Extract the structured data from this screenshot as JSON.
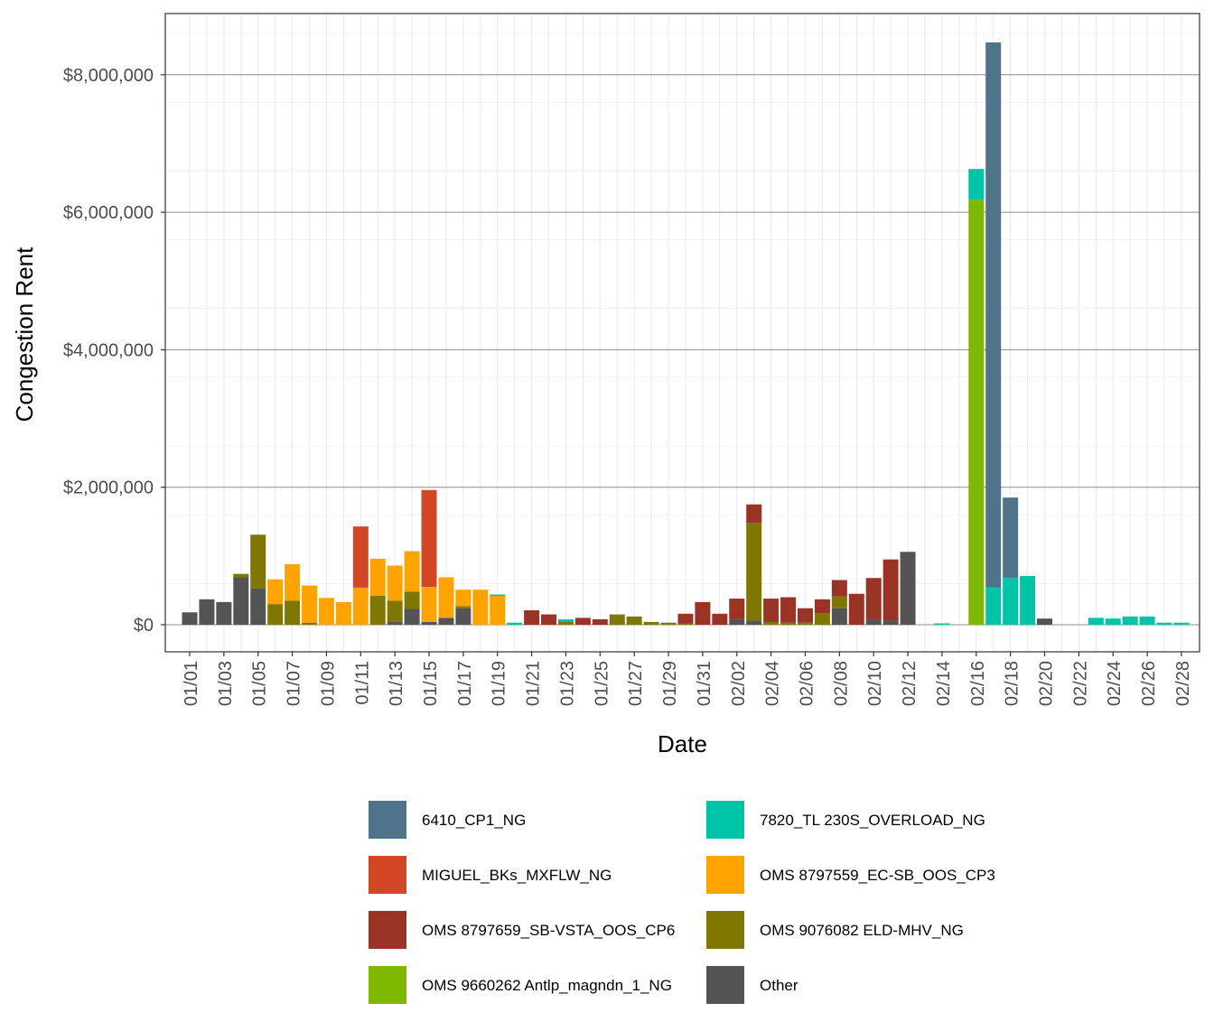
{
  "chart_data": {
    "type": "bar",
    "stacked": true,
    "xlabel": "Date",
    "ylabel": "Congestion Rent",
    "ylim": [
      -400000,
      8800000
    ],
    "y_ticks": [
      0,
      2000000,
      4000000,
      6000000,
      8000000
    ],
    "y_tick_labels": [
      "$0",
      "$2,000,000",
      "$4,000,000",
      "$6,000,000",
      "$8,000,000"
    ],
    "x_tick_labels": [
      "01/01",
      "01/03",
      "01/05",
      "01/07",
      "01/09",
      "01/11",
      "01/13",
      "01/15",
      "01/17",
      "01/19",
      "01/21",
      "01/23",
      "01/25",
      "01/27",
      "01/29",
      "01/31",
      "02/02",
      "02/04",
      "02/06",
      "02/08",
      "02/10",
      "02/12",
      "02/14",
      "02/16",
      "02/18",
      "02/20",
      "02/22",
      "02/24",
      "02/26",
      "02/28"
    ],
    "grid": true,
    "legend_position": "bottom",
    "categories": [
      "01/01",
      "01/02",
      "01/03",
      "01/04",
      "01/05",
      "01/06",
      "01/07",
      "01/08",
      "01/09",
      "01/10",
      "01/11",
      "01/12",
      "01/13",
      "01/14",
      "01/15",
      "01/16",
      "01/17",
      "01/18",
      "01/19",
      "01/20",
      "01/21",
      "01/22",
      "01/23",
      "01/24",
      "01/25",
      "01/26",
      "01/27",
      "01/28",
      "01/29",
      "01/30",
      "01/31",
      "02/01",
      "02/02",
      "02/03",
      "02/04",
      "02/05",
      "02/06",
      "02/07",
      "02/08",
      "02/09",
      "02/10",
      "02/11",
      "02/12",
      "02/13",
      "02/14",
      "02/15",
      "02/16",
      "02/17",
      "02/18",
      "02/19",
      "02/20",
      "02/21",
      "02/22",
      "02/23",
      "02/24",
      "02/25",
      "02/26",
      "02/27",
      "02/28"
    ],
    "series": [
      {
        "name": "Other",
        "color": "#545454",
        "values": [
          180000,
          370000,
          330000,
          690000,
          530000,
          0,
          0,
          0,
          0,
          0,
          0,
          0,
          40000,
          230000,
          40000,
          100000,
          240000,
          0,
          0,
          0,
          0,
          0,
          0,
          0,
          0,
          0,
          0,
          0,
          0,
          0,
          0,
          0,
          80000,
          60000,
          0,
          0,
          0,
          0,
          240000,
          0,
          80000,
          60000,
          1060000,
          0,
          0,
          0,
          0,
          0,
          0,
          0,
          90000,
          0,
          0,
          0,
          0,
          0,
          0,
          0,
          0
        ]
      },
      {
        "name": "OMS 9076082 ELD-MHV_NG",
        "color": "#7f7700",
        "values": [
          0,
          0,
          0,
          50000,
          780000,
          300000,
          350000,
          30000,
          0,
          0,
          0,
          420000,
          310000,
          250000,
          0,
          0,
          30000,
          0,
          0,
          0,
          0,
          0,
          50000,
          0,
          0,
          150000,
          120000,
          40000,
          30000,
          20000,
          0,
          0,
          0,
          1420000,
          40000,
          30000,
          30000,
          170000,
          170000,
          0,
          0,
          0,
          0,
          0,
          0,
          0,
          0,
          0,
          0,
          0,
          0,
          0,
          0,
          0,
          0,
          0,
          0,
          0,
          0
        ]
      },
      {
        "name": "OMS 8797559_EC-SB_OOS_CP3",
        "color": "#ffa300",
        "values": [
          0,
          0,
          0,
          0,
          0,
          360000,
          530000,
          540000,
          390000,
          330000,
          540000,
          540000,
          510000,
          590000,
          510000,
          590000,
          240000,
          510000,
          420000,
          0,
          0,
          0,
          0,
          0,
          0,
          0,
          0,
          0,
          0,
          0,
          0,
          0,
          0,
          0,
          0,
          0,
          0,
          0,
          0,
          0,
          0,
          0,
          0,
          0,
          0,
          0,
          0,
          0,
          0,
          0,
          0,
          0,
          0,
          0,
          0,
          0,
          0,
          0,
          0
        ]
      },
      {
        "name": "MIGUEL_BKs_MXFLW_NG",
        "color": "#d14726",
        "values": [
          0,
          0,
          0,
          0,
          0,
          0,
          0,
          0,
          0,
          0,
          890000,
          0,
          0,
          0,
          1410000,
          0,
          0,
          0,
          0,
          0,
          0,
          0,
          0,
          0,
          0,
          0,
          0,
          0,
          0,
          0,
          0,
          0,
          0,
          0,
          0,
          0,
          0,
          0,
          0,
          0,
          0,
          0,
          0,
          0,
          0,
          0,
          0,
          0,
          0,
          0,
          0,
          0,
          0,
          0,
          0,
          0,
          0,
          0,
          0
        ]
      },
      {
        "name": "OMS 8797659_SB-VSTA_OOS_CP6",
        "color": "#983325",
        "values": [
          0,
          0,
          0,
          0,
          0,
          0,
          0,
          0,
          0,
          0,
          0,
          0,
          0,
          0,
          0,
          0,
          0,
          0,
          0,
          0,
          210000,
          150000,
          0,
          100000,
          80000,
          0,
          0,
          0,
          0,
          140000,
          330000,
          160000,
          300000,
          270000,
          340000,
          370000,
          210000,
          200000,
          240000,
          450000,
          600000,
          890000,
          0,
          0,
          0,
          0,
          0,
          0,
          0,
          0,
          0,
          0,
          0,
          0,
          0,
          0,
          0,
          0,
          0
        ]
      },
      {
        "name": "OMS 9660262 Antlp_magndn_1_NG",
        "color": "#7fb800",
        "values": [
          0,
          0,
          0,
          0,
          0,
          0,
          0,
          0,
          0,
          0,
          0,
          0,
          0,
          0,
          0,
          0,
          0,
          0,
          0,
          0,
          0,
          0,
          0,
          0,
          0,
          0,
          0,
          0,
          0,
          0,
          0,
          0,
          0,
          0,
          0,
          0,
          0,
          0,
          0,
          0,
          0,
          0,
          0,
          0,
          0,
          0,
          6180000,
          0,
          0,
          0,
          0,
          0,
          0,
          0,
          0,
          0,
          0,
          0,
          0
        ]
      },
      {
        "name": "7820_TL 230S_OVERLOAD_NG",
        "color": "#00c4a8",
        "values": [
          0,
          0,
          0,
          0,
          0,
          0,
          0,
          0,
          0,
          0,
          0,
          0,
          0,
          0,
          0,
          0,
          0,
          0,
          20000,
          30000,
          0,
          0,
          30000,
          0,
          0,
          0,
          0,
          0,
          0,
          0,
          0,
          0,
          0,
          0,
          0,
          0,
          0,
          0,
          0,
          0,
          0,
          0,
          0,
          0,
          20000,
          0,
          450000,
          540000,
          680000,
          710000,
          0,
          0,
          0,
          100000,
          90000,
          120000,
          120000,
          30000,
          30000
        ]
      },
      {
        "name": "6410_CP1_NG",
        "color": "#4e738a",
        "values": [
          0,
          0,
          0,
          0,
          0,
          0,
          0,
          0,
          0,
          0,
          0,
          0,
          0,
          0,
          0,
          0,
          0,
          0,
          0,
          0,
          0,
          0,
          0,
          0,
          0,
          0,
          0,
          0,
          0,
          0,
          0,
          0,
          0,
          0,
          0,
          0,
          0,
          0,
          0,
          0,
          0,
          0,
          0,
          0,
          0,
          0,
          0,
          7930000,
          1170000,
          0,
          0,
          0,
          0,
          0,
          0,
          0,
          0,
          0,
          0
        ]
      }
    ],
    "legend_order": [
      "6410_CP1_NG",
      "7820_TL 230S_OVERLOAD_NG",
      "MIGUEL_BKs_MXFLW_NG",
      "OMS 8797559_EC-SB_OOS_CP3",
      "OMS 8797659_SB-VSTA_OOS_CP6",
      "OMS 9076082 ELD-MHV_NG",
      "OMS 9660262 Antlp_magndn_1_NG",
      "Other"
    ]
  }
}
